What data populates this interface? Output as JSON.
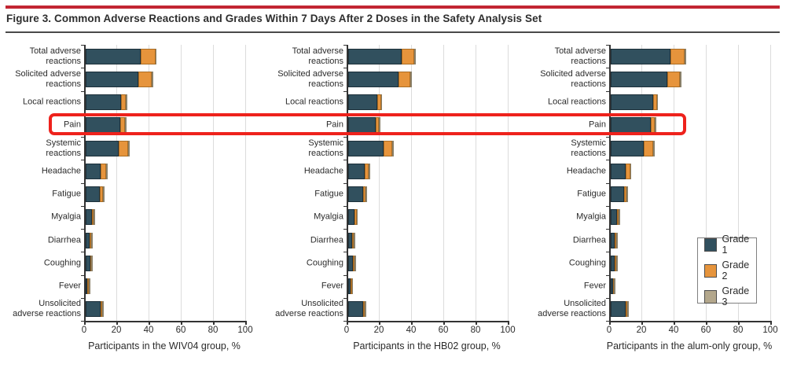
{
  "figure": {
    "title": "Figure 3. Common Adverse Reactions and Grades Within 7 Days After 2 Doses in the Safety Analysis Set"
  },
  "colors": {
    "grade1": "#31505e",
    "grade2": "#e6943c",
    "grade3": "#b3a78c",
    "highlight_box": "#ee221c",
    "top_rule": "#c22532",
    "axis": "#333333",
    "gridline": "#dcdcdc"
  },
  "legend": {
    "position": "right-bottom",
    "items": [
      {
        "label": "Grade 1",
        "color": "#31505e"
      },
      {
        "label": "Grade 2",
        "color": "#e6943c"
      },
      {
        "label": "Grade 3",
        "color": "#b3a78c"
      }
    ]
  },
  "chart_data": {
    "type": "bar",
    "orientation": "horizontal",
    "stacked": true,
    "grid": "vertical",
    "xlim": [
      0,
      100
    ],
    "x_ticks": [
      0,
      20,
      40,
      60,
      80,
      100
    ],
    "categories": [
      "Total adverse\nreactions",
      "Solicited adverse\nreactions",
      "Local reactions",
      "Pain",
      "Systemic\nreactions",
      "Headache",
      "Fatigue",
      "Myalgia",
      "Diarrhea",
      "Coughing",
      "Fever",
      "Unsolicited\nadverse reactions"
    ],
    "panels": [
      {
        "xlabel": "Participants in the WIV04 group, %",
        "series": [
          {
            "name": "Grade 1",
            "values": [
              34.6,
              33.0,
              22.4,
              21.6,
              20.5,
              9.3,
              8.8,
              4.1,
              2.8,
              3.0,
              1.3,
              9.5
            ]
          },
          {
            "name": "Grade 2",
            "values": [
              8.9,
              8.3,
              2.6,
              2.9,
              6.0,
              3.5,
              2.1,
              1.1,
              0.8,
              0.5,
              0.3,
              0.8
            ]
          },
          {
            "name": "Grade 3",
            "values": [
              0.3,
              0.3,
              0.3,
              0.3,
              0.3,
              0.3,
              0.3,
              0.3,
              0.3,
              0.3,
              0.3,
              0.3
            ]
          }
        ]
      },
      {
        "xlabel": "Participants in the HB02 group, %",
        "series": [
          {
            "name": "Grade 1",
            "values": [
              33.3,
              31.7,
              18.3,
              17.2,
              22.1,
              10.7,
              9.4,
              4.1,
              2.9,
              3.2,
              1.6,
              9.7
            ]
          },
          {
            "name": "Grade 2",
            "values": [
              7.8,
              7.1,
              2.2,
              2.1,
              5.7,
              2.1,
              1.5,
              1.3,
              0.4,
              0.8,
              0.3,
              1.0
            ]
          },
          {
            "name": "Grade 3",
            "values": [
              0.3,
              0.3,
              0.3,
              0.3,
              0.3,
              0.3,
              0.3,
              0.3,
              0.3,
              0.3,
              0.3,
              0.3
            ]
          }
        ]
      },
      {
        "xlabel": "Participants in the alum-only group, %",
        "series": [
          {
            "name": "Grade 1",
            "values": [
              37.1,
              35.4,
              26.5,
              24.9,
              20.8,
              9.4,
              8.4,
              4.0,
              2.9,
              2.8,
              1.5,
              9.4
            ]
          },
          {
            "name": "Grade 2",
            "values": [
              8.9,
              7.9,
              2.3,
              2.6,
              6.0,
              2.8,
              1.5,
              1.2,
              1.0,
              0.9,
              0.3,
              1.3
            ]
          },
          {
            "name": "Grade 3",
            "values": [
              0.3,
              0.3,
              0.3,
              0.3,
              0.3,
              0.3,
              0.3,
              0.3,
              0.3,
              0.3,
              0.3,
              0.3
            ]
          }
        ]
      }
    ],
    "annotation": {
      "type": "highlight-box",
      "target_category": "Pain",
      "spans": "all panels",
      "color": "#ee221c"
    }
  }
}
